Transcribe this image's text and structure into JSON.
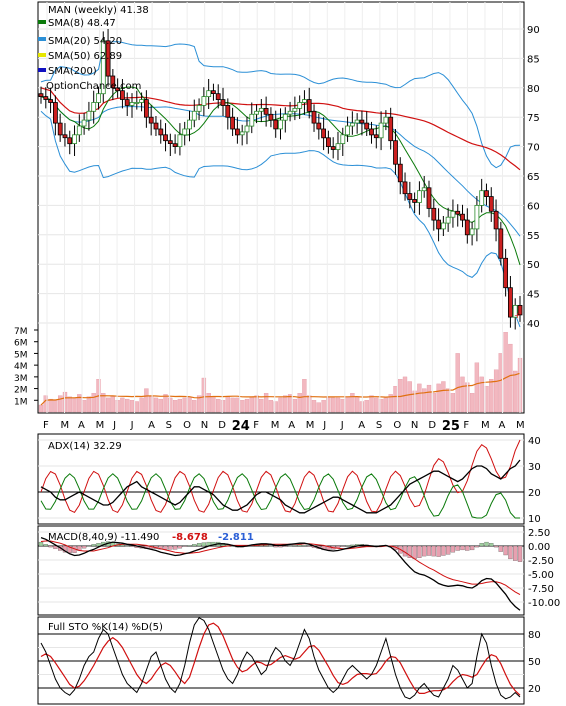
{
  "colors": {
    "sma8": "#0a7a0a",
    "sma20": "#2b8fd6",
    "sma50": "#e6e600",
    "sma200": "#1010c0",
    "red_line": "#d01010",
    "orange": "#e07010",
    "up": "#2e8b2e",
    "down": "#cc2020",
    "volume": "#f2b8c0"
  },
  "chart_data": [
    {
      "type": "candlestick",
      "title": "MAN (weekly) 41.38",
      "watermark": "OptionChance.com",
      "legend": [
        "SMA(8) 48.47",
        "SMA(20) 54.20",
        "SMA(50) 62.89",
        "SMA(200)"
      ],
      "legend_placement": "top-left",
      "yticks": [
        40,
        45,
        50,
        55,
        60,
        65,
        70,
        75,
        80,
        85,
        90
      ],
      "ylim": [
        36,
        93
      ],
      "xticks": [
        "F",
        "M",
        "A",
        "M",
        "J",
        "J",
        "A",
        "S",
        "O",
        "N",
        "D",
        "24",
        "F",
        "M",
        "A",
        "M",
        "J",
        "J",
        "A",
        "S",
        "O",
        "N",
        "D",
        "25",
        "F",
        "M",
        "A",
        "M"
      ],
      "close": [
        78.5,
        78.0,
        77.5,
        74.0,
        72.0,
        71.5,
        70.5,
        72.0,
        73.5,
        74.5,
        76.0,
        77.5,
        79.0,
        88.0,
        82.0,
        80.0,
        79.5,
        78.0,
        77.0,
        77.5,
        77.5,
        78.0,
        75.0,
        74.0,
        73.0,
        72.0,
        71.0,
        70.5,
        70.0,
        72.0,
        73.0,
        74.5,
        76.0,
        77.0,
        78.5,
        79.5,
        79.0,
        78.0,
        77.0,
        75.0,
        73.0,
        72.0,
        72.5,
        73.5,
        75.5,
        76.0,
        76.5,
        75.5,
        74.5,
        73.0,
        74.5,
        75.5,
        76.0,
        76.5,
        77.5,
        78.0,
        76.0,
        74.0,
        73.0,
        71.5,
        70.0,
        69.5,
        70.5,
        72.0,
        73.5,
        74.0,
        74.5,
        74.0,
        73.0,
        72.0,
        71.5,
        74.0,
        75.0,
        71.0,
        67.0,
        64.0,
        62.0,
        61.0,
        60.5,
        62.5,
        63.0,
        59.5,
        57.5,
        56.0,
        57.0,
        58.0,
        59.0,
        58.5,
        57.5,
        55.0,
        56.0,
        60.0,
        62.5,
        61.5,
        59.0,
        56.0,
        51.0,
        46.0,
        41.0,
        43.0,
        41.38
      ],
      "volume_yticks": [
        "1M",
        "2M",
        "3M",
        "4M",
        "5M",
        "6M",
        "7M"
      ],
      "volume_millions": [
        0.6,
        1.4,
        1.1,
        1.0,
        1.4,
        1.7,
        1.3,
        1.2,
        1.5,
        1.0,
        1.3,
        1.6,
        2.8,
        1.6,
        1.2,
        1.3,
        1.0,
        1.2,
        1.1,
        1.0,
        0.9,
        1.2,
        2.0,
        1.3,
        1.2,
        1.1,
        1.5,
        1.2,
        1.0,
        1.1,
        1.2,
        1.3,
        1.0,
        1.4,
        2.9,
        1.6,
        1.3,
        1.1,
        1.0,
        1.3,
        1.2,
        1.2,
        1.0,
        1.1,
        1.3,
        1.4,
        1.1,
        1.6,
        1.0,
        0.9,
        1.2,
        1.4,
        1.5,
        1.1,
        1.6,
        2.8,
        1.4,
        1.0,
        0.8,
        1.0,
        1.3,
        1.2,
        1.2,
        1.1,
        1.3,
        1.6,
        1.3,
        0.9,
        1.0,
        1.4,
        1.2,
        1.1,
        1.2,
        1.5,
        2.2,
        2.8,
        3.0,
        2.6,
        1.8,
        2.4,
        2.0,
        2.3,
        1.6,
        2.4,
        2.6,
        2.0,
        1.6,
        5.0,
        3.0,
        2.5,
        1.6,
        4.2,
        3.0,
        2.2,
        2.8,
        3.6,
        5.0,
        6.8,
        5.8,
        3.5,
        4.6
      ],
      "xlabels_placement": "bottom"
    },
    {
      "type": "line",
      "title": "ADX(14) 32.29",
      "yticks": [
        10,
        20,
        30,
        40
      ],
      "ylim": [
        8,
        42
      ],
      "series": [
        {
          "name": "ADX(14)",
          "values": [
            22,
            21,
            20,
            18,
            17,
            17,
            18,
            19,
            20,
            19,
            18,
            17,
            16,
            15,
            15,
            16,
            18,
            20,
            22,
            23,
            24,
            22,
            21,
            20,
            19,
            18,
            17,
            16,
            15,
            16,
            18,
            20,
            22,
            22,
            21,
            20,
            19,
            17,
            15,
            14,
            13,
            13,
            14,
            15,
            17,
            19,
            20,
            20,
            19,
            18,
            17,
            15,
            14,
            13,
            12,
            12,
            13,
            14,
            15,
            16,
            17,
            18,
            18,
            17,
            16,
            15,
            14,
            13,
            12,
            12,
            12,
            13,
            14,
            15,
            17,
            19,
            21,
            23,
            24,
            25,
            26,
            27,
            28,
            28,
            27,
            26,
            25,
            24,
            25,
            27,
            29,
            30,
            30,
            29,
            27,
            26,
            25,
            27,
            29,
            30,
            32.29
          ]
        }
      ]
    },
    {
      "type": "bar+line",
      "title": "MACD(8,40,9) -11.490",
      "values_text": [
        "-8.678",
        "-2.811"
      ],
      "yticks": [
        "0.00",
        "-2.50",
        "-5.00",
        "-7.50",
        "-10.00",
        "2.50"
      ],
      "ylim": [
        -11,
        3
      ],
      "series": [
        {
          "name": "MACD",
          "values": [
            1.5,
            1.2,
            0.7,
            0.2,
            -0.3,
            -0.9,
            -1.4,
            -1.7,
            -1.6,
            -1.3,
            -0.9,
            -0.6,
            -0.2,
            0.2,
            0.5,
            0.7,
            0.6,
            0.5,
            0.3,
            0.2,
            0.0,
            -0.2,
            -0.4,
            -0.6,
            -0.8,
            -1.1,
            -1.3,
            -1.5,
            -1.7,
            -1.6,
            -1.4,
            -1.2,
            -0.9,
            -0.6,
            -0.3,
            0.0,
            0.2,
            0.4,
            0.4,
            0.3,
            0.1,
            -0.1,
            -0.1,
            0.0,
            0.2,
            0.3,
            0.4,
            0.4,
            0.3,
            0.1,
            0.1,
            0.2,
            0.3,
            0.4,
            0.5,
            0.5,
            0.3,
            0.0,
            -0.3,
            -0.6,
            -0.8,
            -0.9,
            -0.8,
            -0.6,
            -0.4,
            -0.2,
            0.0,
            0.1,
            0.1,
            0.0,
            -0.1,
            0.0,
            0.1,
            -0.2,
            -0.9,
            -1.9,
            -2.9,
            -3.8,
            -4.6,
            -5.0,
            -5.2,
            -5.6,
            -6.1,
            -6.7,
            -7.0,
            -7.2,
            -7.1,
            -7.0,
            -7.1,
            -7.4,
            -7.5,
            -7.0,
            -6.2,
            -5.8,
            -5.9,
            -6.6,
            -7.6,
            -8.6,
            -9.9,
            -10.8,
            -11.49
          ]
        },
        {
          "name": "Signal",
          "values": [
            0.8,
            0.9,
            0.9,
            0.7,
            0.5,
            0.2,
            -0.2,
            -0.5,
            -0.8,
            -0.9,
            -0.9,
            -0.9,
            -0.7,
            -0.5,
            -0.3,
            0.0,
            0.2,
            0.3,
            0.3,
            0.3,
            0.3,
            0.2,
            0.1,
            -0.1,
            -0.3,
            -0.5,
            -0.7,
            -0.9,
            -1.1,
            -1.2,
            -1.3,
            -1.3,
            -1.2,
            -1.1,
            -0.9,
            -0.7,
            -0.5,
            -0.3,
            -0.1,
            0.0,
            0.1,
            0.1,
            0.1,
            0.1,
            0.1,
            0.1,
            0.2,
            0.2,
            0.3,
            0.3,
            0.3,
            0.3,
            0.3,
            0.3,
            0.3,
            0.4,
            0.4,
            0.3,
            0.2,
            0.1,
            -0.1,
            -0.3,
            -0.4,
            -0.5,
            -0.5,
            -0.4,
            -0.3,
            -0.2,
            -0.1,
            -0.1,
            -0.1,
            -0.1,
            0.0,
            0.0,
            -0.2,
            -0.6,
            -1.1,
            -1.7,
            -2.3,
            -2.9,
            -3.4,
            -3.9,
            -4.3,
            -4.8,
            -5.3,
            -5.7,
            -6.0,
            -6.2,
            -6.4,
            -6.6,
            -6.8,
            -6.8,
            -6.7,
            -6.5,
            -6.4,
            -6.4,
            -6.6,
            -7.0,
            -7.6,
            -8.2,
            -8.678
          ]
        }
      ]
    },
    {
      "type": "line",
      "title": "Full STO %K(14) %D(5)",
      "yticks": [
        20,
        50,
        80
      ],
      "ylim": [
        0,
        100
      ],
      "series": [
        {
          "name": "%K(14)",
          "values": [
            70,
            60,
            45,
            30,
            20,
            15,
            12,
            18,
            30,
            45,
            55,
            60,
            75,
            85,
            80,
            65,
            50,
            35,
            25,
            20,
            15,
            25,
            40,
            55,
            60,
            45,
            30,
            20,
            15,
            25,
            45,
            70,
            90,
            100,
            95,
            85,
            70,
            55,
            40,
            30,
            25,
            35,
            50,
            60,
            55,
            45,
            35,
            40,
            55,
            65,
            60,
            50,
            45,
            55,
            70,
            85,
            75,
            55,
            40,
            30,
            20,
            15,
            20,
            30,
            40,
            45,
            40,
            35,
            30,
            35,
            45,
            60,
            75,
            55,
            35,
            20,
            10,
            8,
            12,
            20,
            25,
            18,
            12,
            10,
            20,
            30,
            45,
            40,
            30,
            20,
            25,
            55,
            80,
            70,
            45,
            25,
            12,
            8,
            10,
            15,
            10
          ]
        },
        {
          "name": "%D(5)",
          "values": [
            55,
            58,
            55,
            48,
            40,
            32,
            24,
            20,
            22,
            28,
            36,
            45,
            55,
            65,
            72,
            76,
            72,
            65,
            55,
            45,
            35,
            28,
            25,
            30,
            38,
            45,
            48,
            45,
            38,
            30,
            25,
            32,
            48,
            65,
            80,
            90,
            92,
            88,
            78,
            65,
            52,
            43,
            38,
            40,
            45,
            49,
            48,
            45,
            46,
            50,
            54,
            56,
            54,
            52,
            54,
            60,
            66,
            67,
            62,
            53,
            44,
            34,
            26,
            24,
            26,
            31,
            35,
            36,
            36,
            35,
            36,
            42,
            50,
            55,
            54,
            48,
            38,
            28,
            19,
            14,
            14,
            16,
            17,
            17,
            18,
            21,
            27,
            32,
            35,
            34,
            32,
            35,
            44,
            52,
            57,
            55,
            47,
            35,
            24,
            17,
            12
          ]
        }
      ]
    }
  ]
}
